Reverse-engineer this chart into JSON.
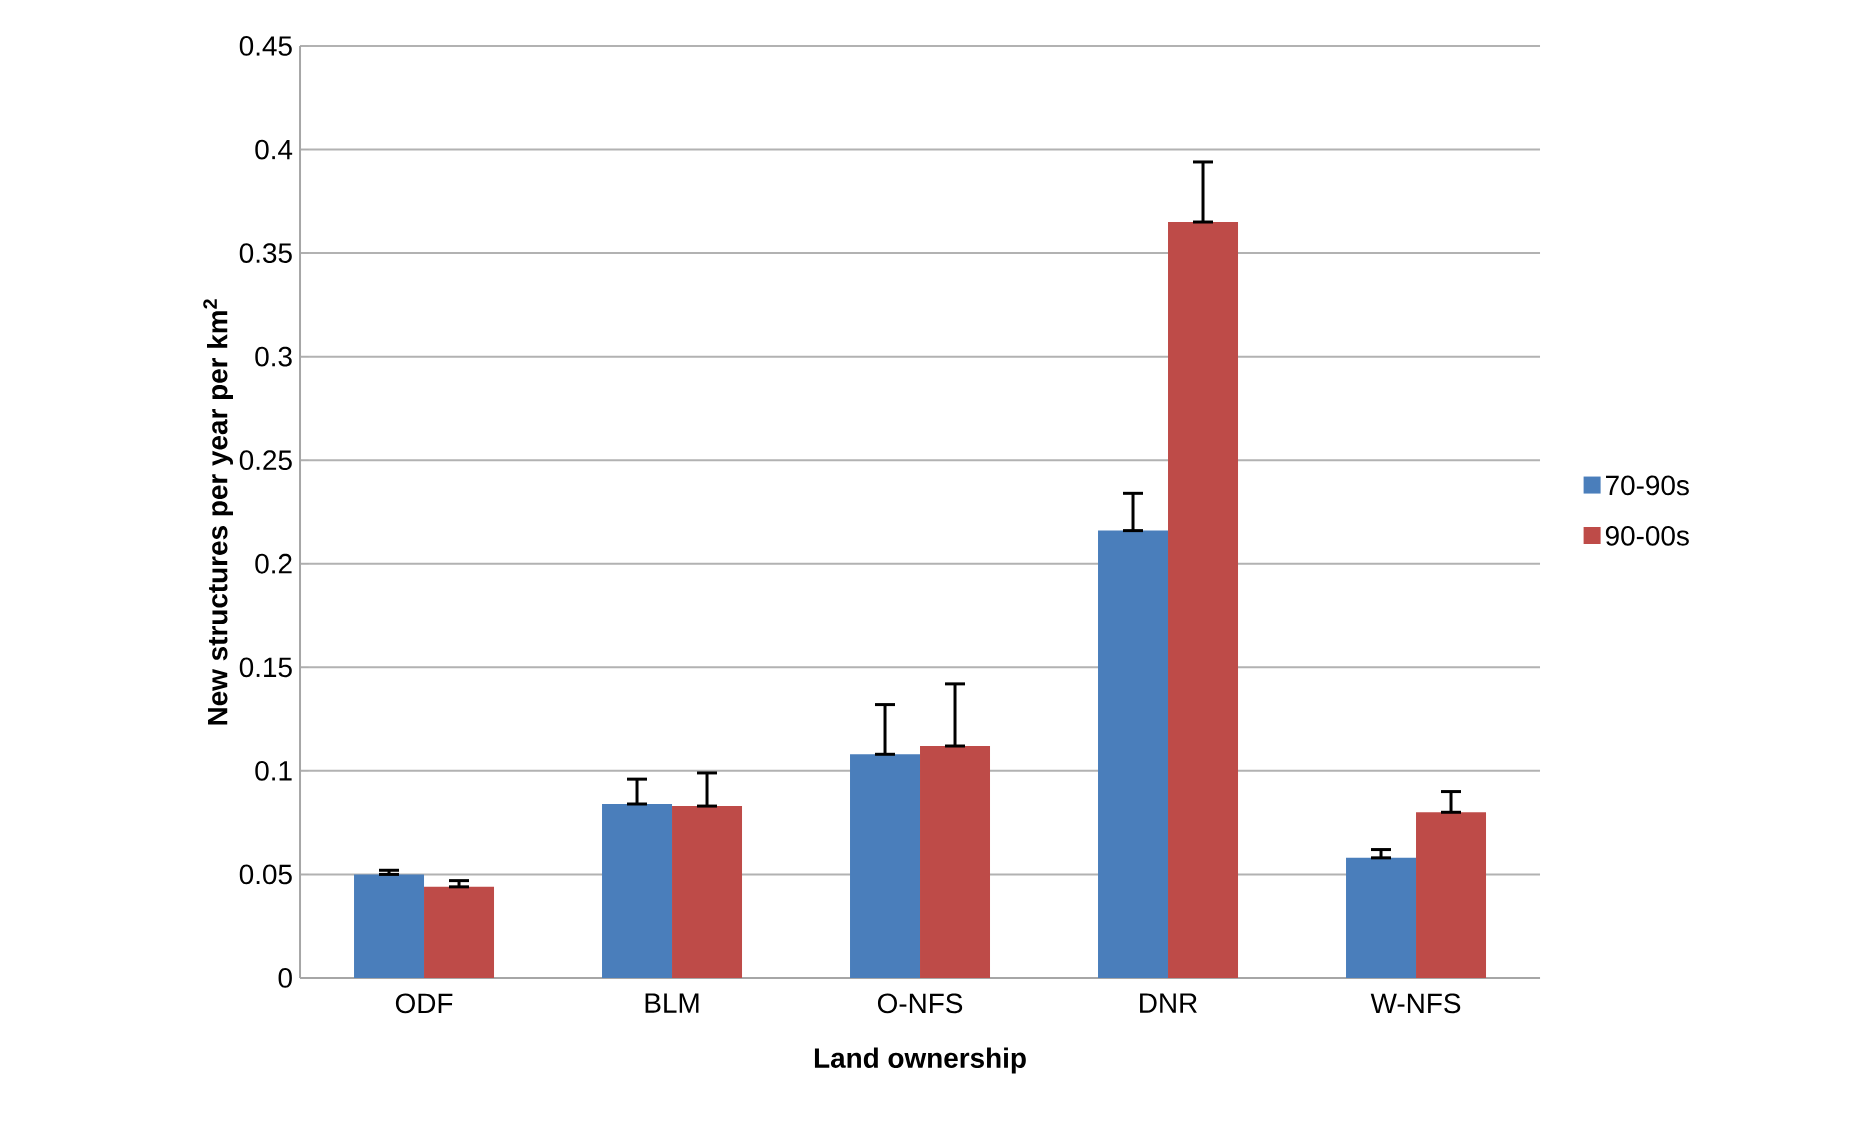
{
  "chart_data": {
    "type": "bar",
    "xlabel": "Land ownership",
    "ylabel": "New structures per year per km$^{2}$",
    "categories": [
      "ODF",
      "BLM",
      "O-NFS",
      "DNR",
      "W-NFS"
    ],
    "series": [
      {
        "name": "70-90s",
        "color": "#4a7ebb",
        "values": [
          0.05,
          0.084,
          0.108,
          0.216,
          0.058
        ],
        "errors": [
          [
            0.05,
            0.052
          ],
          [
            0.084,
            0.096
          ],
          [
            0.108,
            0.132
          ],
          [
            0.216,
            0.234
          ],
          [
            0.058,
            0.062
          ]
        ]
      },
      {
        "name": "90-00s",
        "color": "#be4b48",
        "values": [
          0.044,
          0.083,
          0.112,
          0.365,
          0.08
        ],
        "errors": [
          [
            0.044,
            0.047
          ],
          [
            0.083,
            0.099
          ],
          [
            0.112,
            0.142
          ],
          [
            0.365,
            0.394
          ],
          [
            0.08,
            0.09
          ]
        ]
      }
    ],
    "ylim": [
      0,
      0.45
    ],
    "yticks": [
      0,
      0.05,
      0.1,
      0.15,
      0.2,
      0.25,
      0.3,
      0.35,
      0.4,
      0.45
    ],
    "grid": "y",
    "legend": "right"
  }
}
